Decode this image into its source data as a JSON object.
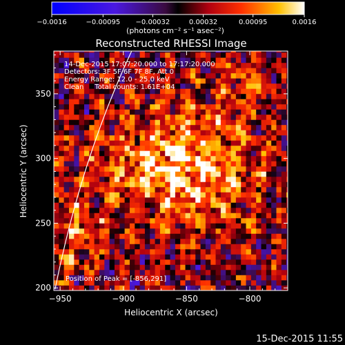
{
  "chart_data": {
    "type": "heatmap",
    "title": "Reconstructed RHESSI Image",
    "xlabel": "Heliocentric X (arcsec)",
    "ylabel": "Heliocentric Y (arcsec)",
    "xlim": [
      -955,
      -770
    ],
    "ylim": [
      198,
      383
    ],
    "x_ticks": [
      -950,
      -900,
      -850,
      -800
    ],
    "y_ticks": [
      200,
      250,
      300,
      350
    ],
    "x_tick_labels": [
      "−950",
      "−900",
      "−850",
      "−800"
    ],
    "y_tick_labels": [
      "200",
      "250",
      "300",
      "350"
    ],
    "colorbar": {
      "range": [
        -0.0016,
        0.0016
      ],
      "ticks": [
        -0.0016,
        -0.00095,
        -0.00032,
        0.00032,
        0.00095,
        0.0016
      ],
      "tick_labels": [
        "−0.0016",
        "−0.00095",
        "−0.00032",
        "0.00032",
        "0.00095",
        "0.0016"
      ],
      "unit_label": "(photons cm⁻² s⁻¹ asec⁻²)"
    },
    "info_lines": [
      "14-Dec-2015 17:07:20.000 to 17:17:20.000",
      "Detectors: 3F 5F 6F 7F 8F, Att 0",
      "Energy Range: 12.0 - 25.0 keV",
      "Clean     Total counts: 1.61E+04"
    ],
    "peak_label": "Position of Peak = [-856,291]",
    "peak": [
      -856,
      291
    ],
    "grid": false,
    "limb_line": true
  },
  "footer_timestamp": "15-Dec-2015 11:55"
}
